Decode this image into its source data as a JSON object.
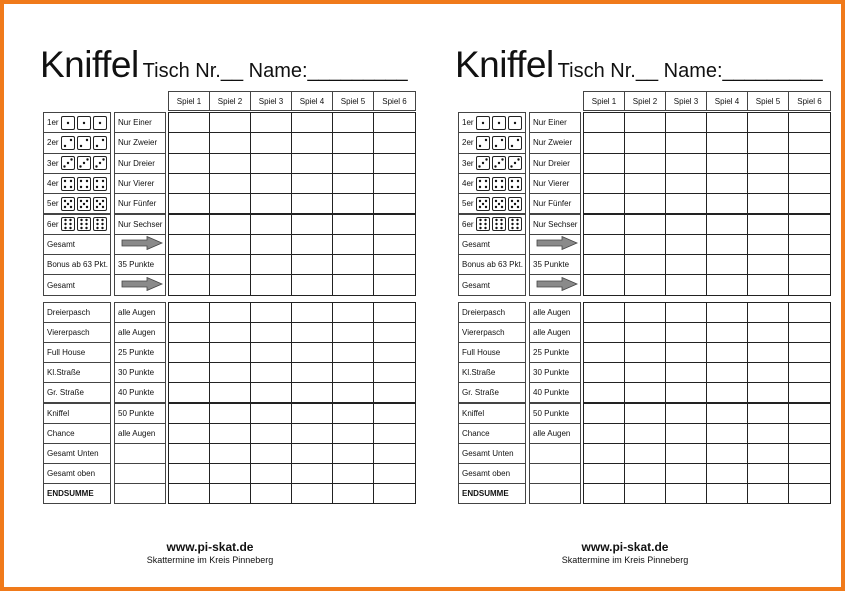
{
  "title": "Kniffel",
  "subtitle": "Tisch Nr.__ Name:_________",
  "games": [
    "Spiel 1",
    "Spiel 2",
    "Spiel 3",
    "Spiel 4",
    "Spiel 5",
    "Spiel 6"
  ],
  "upper": [
    {
      "label": "1er",
      "dice": 1,
      "desc": "Nur Einer"
    },
    {
      "label": "2er",
      "dice": 2,
      "desc": "Nur Zweier"
    },
    {
      "label": "3er",
      "dice": 3,
      "desc": "Nur Dreier"
    },
    {
      "label": "4er",
      "dice": 4,
      "desc": "Nur Vierer"
    },
    {
      "label": "5er",
      "dice": 5,
      "desc": "Nur Fünfer"
    },
    {
      "label": "6er",
      "dice": 6,
      "desc": "Nur Sechser"
    },
    {
      "label": "Gesamt",
      "arrow": true,
      "desc": ""
    },
    {
      "label": "Bonus ab 63 Pkt.",
      "desc": "35 Punkte"
    },
    {
      "label": "Gesamt",
      "arrow": true,
      "desc": ""
    }
  ],
  "lower": [
    {
      "label": "Dreierpasch",
      "desc": "alle Augen"
    },
    {
      "label": "Viererpasch",
      "desc": "alle Augen"
    },
    {
      "label": "Full House",
      "desc": "25 Punkte"
    },
    {
      "label": "Kl.Straße",
      "desc": "30 Punkte"
    },
    {
      "label": "Gr. Straße",
      "desc": "40 Punkte"
    },
    {
      "label": "Kniffel",
      "desc": "50 Punkte"
    },
    {
      "label": "Chance",
      "desc": "alle Augen"
    },
    {
      "label": "Gesamt Unten",
      "desc": ""
    },
    {
      "label": "Gesamt oben",
      "desc": ""
    },
    {
      "label": "ENDSUMME",
      "desc": "",
      "bold": true
    }
  ],
  "footer": {
    "url": "www.pi-skat.de",
    "text": "Skattermine im Kreis Pinneberg"
  },
  "colors": {
    "frame": "#f07a1a",
    "arrow": "#8a8a8a"
  }
}
